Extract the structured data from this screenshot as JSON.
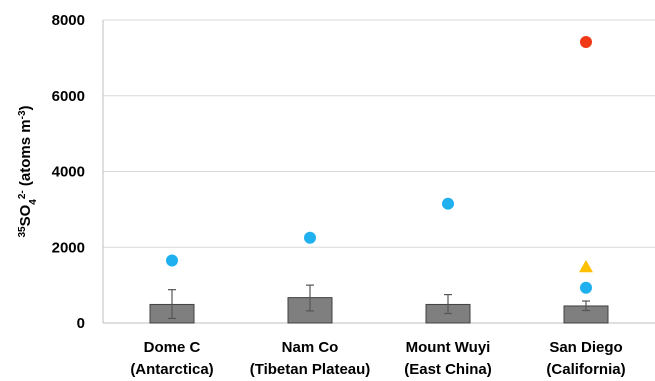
{
  "chart_data": {
    "type": "bar",
    "categories": [
      [
        "Dome C",
        "(Antarctica)"
      ],
      [
        "Nam Co",
        "(Tibetan Plateau)"
      ],
      [
        "Mount Wuyi",
        "(East China)"
      ],
      [
        "San Diego",
        "(California)"
      ]
    ],
    "y_axis": {
      "label_parts": [
        {
          "text": "35",
          "shift": "super"
        },
        {
          "text": "SO",
          "shift": "base"
        },
        {
          "text": "4",
          "shift": "sub"
        },
        {
          "text": "2-",
          "shift": "super"
        },
        {
          "text": " (atoms m",
          "shift": "base"
        },
        {
          "text": "-3",
          "shift": "super"
        },
        {
          "text": ")",
          "shift": "base"
        }
      ],
      "ylim": [
        0,
        8000
      ],
      "ticks": [
        0,
        2000,
        4000,
        6000,
        8000
      ],
      "tick_labels": [
        "0",
        "2000",
        "4000",
        "6000",
        "8000"
      ],
      "grid": true
    },
    "bars": {
      "color": "#7f7f7f",
      "values": [
        490,
        670,
        490,
        450
      ],
      "error_low": [
        120,
        320,
        250,
        330
      ],
      "error_high": [
        880,
        1000,
        750,
        580
      ]
    },
    "points": [
      {
        "category": 0,
        "y": 1650,
        "marker": "circle",
        "color": "#1fb0ef"
      },
      {
        "category": 1,
        "y": 2250,
        "marker": "circle",
        "color": "#1fb0ef"
      },
      {
        "category": 2,
        "y": 3150,
        "marker": "circle",
        "color": "#1fb0ef"
      },
      {
        "category": 3,
        "y": 930,
        "marker": "circle",
        "color": "#1fb0ef"
      },
      {
        "category": 3,
        "y": 1480,
        "marker": "triangle",
        "color": "#ffc000"
      },
      {
        "category": 3,
        "y": 7420,
        "marker": "circle",
        "color": "#f03a17"
      }
    ]
  }
}
